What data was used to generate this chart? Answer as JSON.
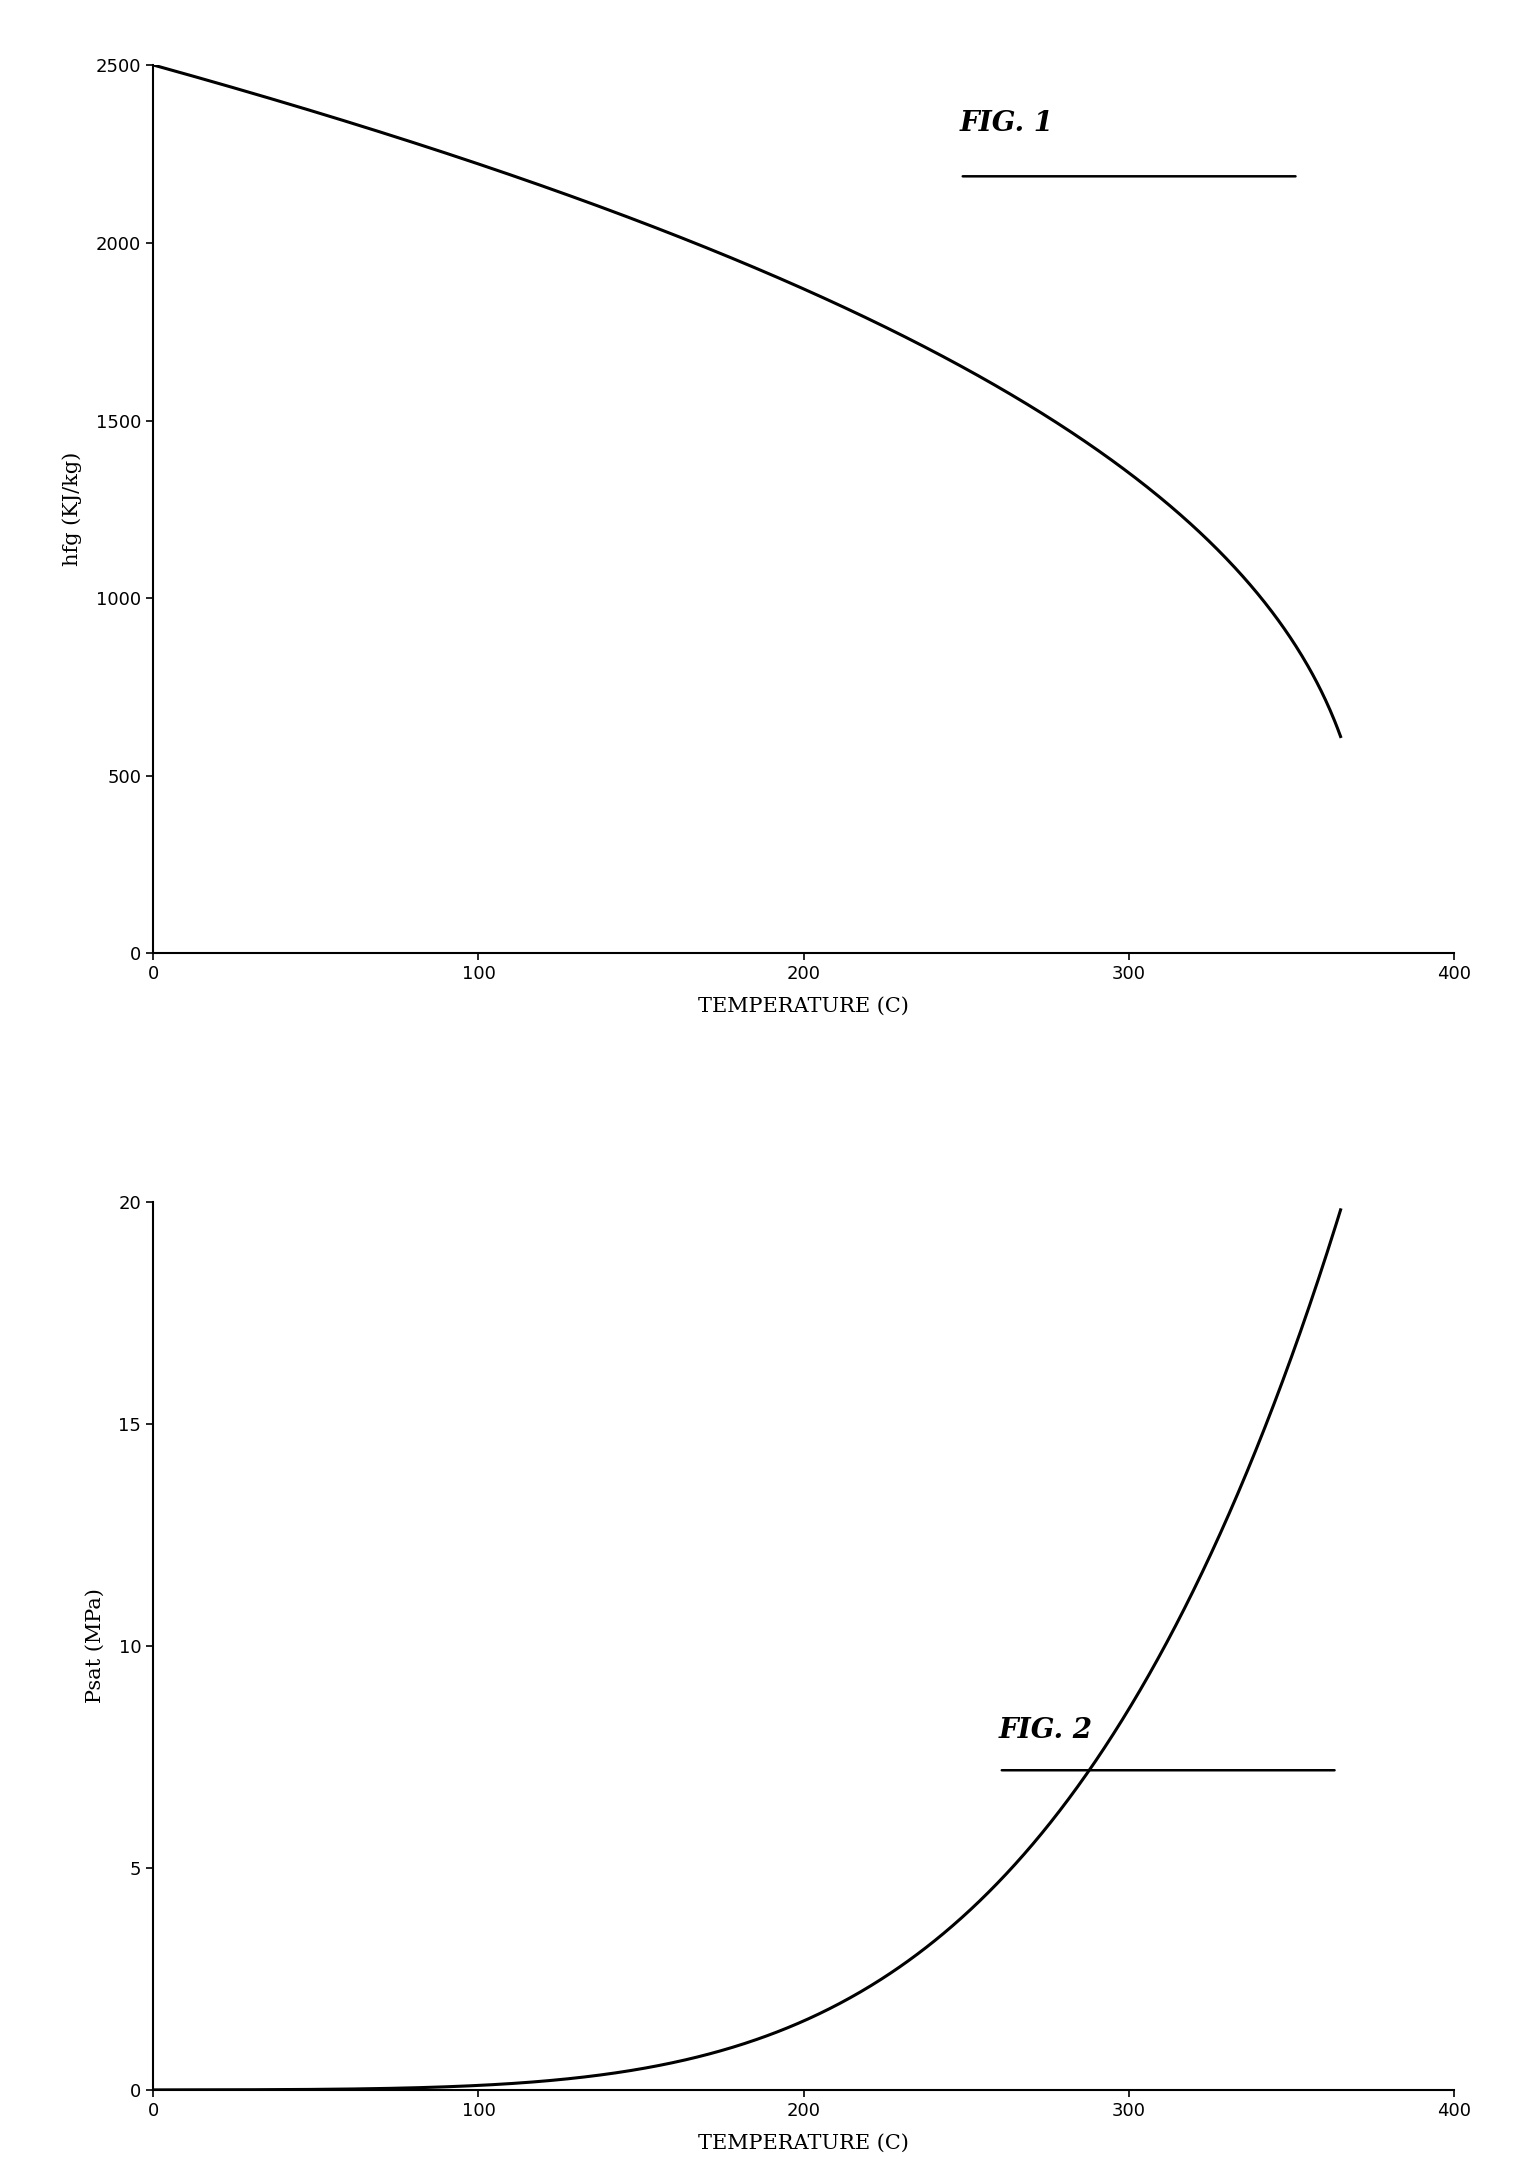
{
  "fig1": {
    "title": "FIG. 1",
    "xlabel": "TEMPERATURE (C)",
    "ylabel": "hfg (KJ/kg)",
    "xlim": [
      0,
      400
    ],
    "ylim": [
      0,
      2500
    ],
    "xticks": [
      0,
      100,
      200,
      300,
      400
    ],
    "yticks": [
      0,
      500,
      1000,
      1500,
      2000,
      2500
    ]
  },
  "fig2": {
    "title": "FIG. 2",
    "xlabel": "TEMPERATURE (C)",
    "ylabel": "Psat (MPa)",
    "xlim": [
      0,
      400
    ],
    "ylim": [
      0,
      20
    ],
    "xticks": [
      0,
      100,
      200,
      300,
      400
    ],
    "yticks": [
      0,
      5,
      10,
      15,
      20
    ]
  },
  "background_color": "#ffffff",
  "line_color": "#000000",
  "line_width": 2.2,
  "title_fontsize": 20,
  "label_fontsize": 15,
  "tick_fontsize": 13
}
